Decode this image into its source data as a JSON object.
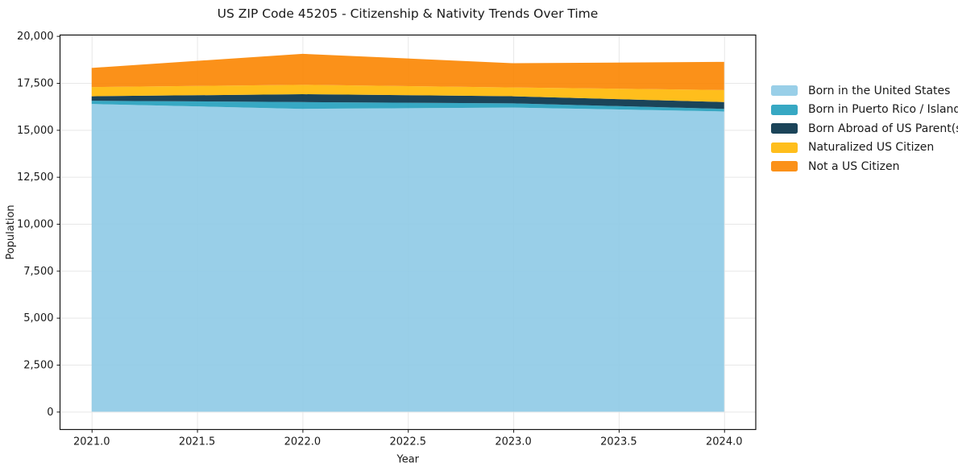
{
  "figure": {
    "title": "US ZIP Code 45205 - Citizenship & Nativity Trends Over Time"
  },
  "chart_data": {
    "type": "area",
    "stacked": true,
    "title": "US ZIP Code 45205 - Citizenship & Nativity Trends Over Time",
    "xlabel": "Year",
    "ylabel": "Population",
    "x": [
      2021,
      2022,
      2023,
      2024
    ],
    "series": [
      {
        "name": "Born in the United States",
        "color": "#8ECAE6",
        "values": [
          16380,
          16120,
          16190,
          15980
        ]
      },
      {
        "name": "Born in Puerto Rico / Islands",
        "color": "#219EBC",
        "values": [
          170,
          360,
          220,
          140
        ]
      },
      {
        "name": "Born Abroad of US Parent(s)",
        "color": "#023047",
        "values": [
          240,
          420,
          380,
          360
        ]
      },
      {
        "name": "Naturalized US Citizen",
        "color": "#FFB703",
        "values": [
          490,
          500,
          470,
          640
        ]
      },
      {
        "name": "Not a US Citizen",
        "color": "#FB8500",
        "values": [
          1020,
          1650,
          1290,
          1500
        ]
      }
    ],
    "stack_totals": [
      18300,
      19050,
      18550,
      18620
    ],
    "fill_alpha": 0.9,
    "xlim": [
      2020.85,
      2024.15
    ],
    "ylim": [
      -950,
      20050
    ],
    "xticks": {
      "values": [
        2021.0,
        2021.5,
        2022.0,
        2022.5,
        2023.0,
        2023.5,
        2024.0
      ],
      "labels": [
        "2021.0",
        "2021.5",
        "2022.0",
        "2022.5",
        "2023.0",
        "2023.5",
        "2024.0"
      ]
    },
    "yticks": {
      "values": [
        0,
        2500,
        5000,
        7500,
        10000,
        12500,
        15000,
        17500,
        20000
      ],
      "labels": [
        "0",
        "2,500",
        "5,000",
        "7,500",
        "10,000",
        "12,500",
        "15,000",
        "17,500",
        "20,000"
      ]
    },
    "grid": true,
    "legend_position": "right of plot"
  },
  "colors": {
    "grid": "#e7e7e7",
    "spine": "#141414",
    "tick": "#141414",
    "text": "#1a1a1a",
    "background": "#ffffff"
  }
}
